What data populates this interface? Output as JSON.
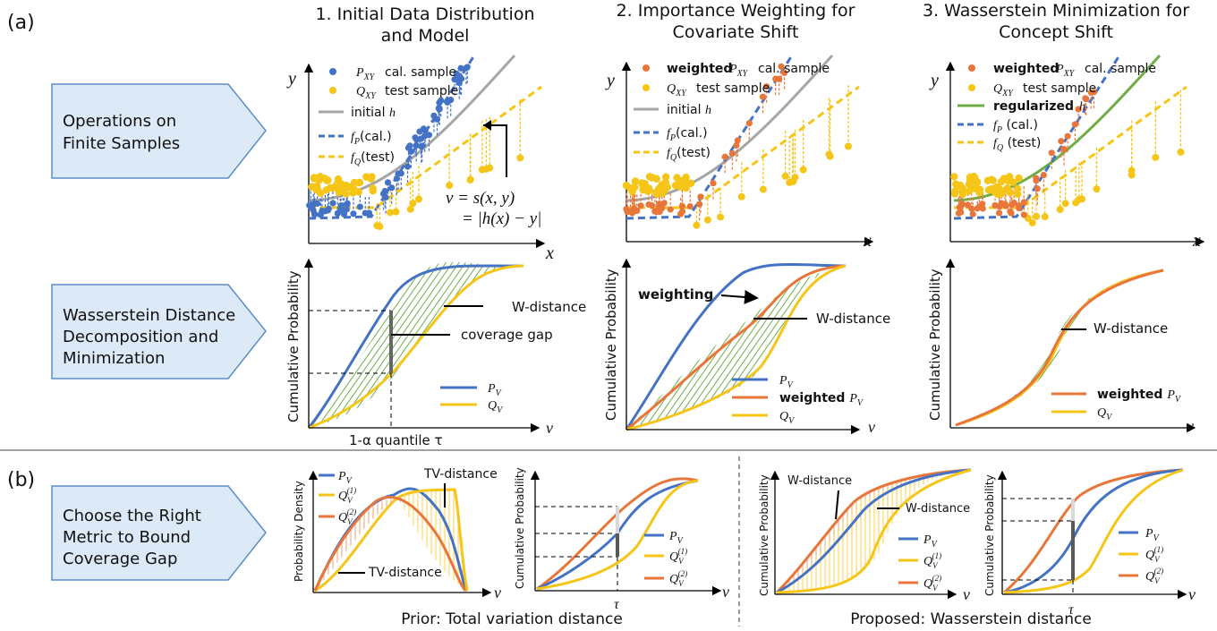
{
  "section_a": {
    "label": "(a)"
  },
  "section_b": {
    "label": "(b)"
  },
  "columns": {
    "c1": {
      "line1": "1.   Initial Data Distribution",
      "line2": "and Model"
    },
    "c2": {
      "line1": "2. Importance Weighting for",
      "line2": "Covariate Shift"
    },
    "c3": {
      "line1": "3. Wasserstein Minimization for",
      "line2": "Concept Shift"
    }
  },
  "row_labels": {
    "r1": [
      "Operations on",
      "Finite Samples"
    ],
    "r2": [
      "Wasserstein Distance",
      "Decomposition and",
      "Minimization"
    ],
    "r3": [
      "Choose the Right",
      "Metric to Bound",
      "Coverage Gap"
    ]
  },
  "scatter1": {
    "legend": [
      "P_XY cal. sample",
      "Q_XY test sample",
      "initial h",
      "f_P(cal.)",
      "f_Q(test)"
    ],
    "score_eq1": "v = s(x, y)",
    "score_eq2": "= |h(x) − y|"
  },
  "scatter2": {
    "legend_bold": "weighted",
    "legend": [
      "P_XY cal. sample",
      "Q_XY test sample",
      "initial h",
      "f_P(cal.)",
      "f_Q(test)"
    ]
  },
  "scatter3": {
    "legend_bold": "weighted",
    "legend_bold2": "regularized",
    "legend": [
      "P_XY cal. sample",
      "Q_XY test sample",
      "h",
      "f_P (cal.)",
      "f_Q (test)"
    ]
  },
  "axes": {
    "x": "x",
    "y": "y",
    "v": "v",
    "tau": "τ",
    "cum_prob": "Cumulative Probability",
    "prob_density": "Probability Density"
  },
  "cdf1": {
    "w_distance": "W-distance",
    "coverage_gap": "coverage gap",
    "quantile": "1-α quantile τ",
    "legend": [
      "P_V",
      "Q_V"
    ]
  },
  "cdf2": {
    "weighting": "weighting",
    "w_distance": "W-distance",
    "legend": [
      "P_V",
      "weighted P_V",
      "Q_V"
    ]
  },
  "cdf3": {
    "w_distance": "W-distance",
    "legend": [
      "weighted P_V",
      "Q_V"
    ]
  },
  "bottom": {
    "tv_distance": "TV-distance",
    "legend": [
      "P_V",
      "Q_V^(1)",
      "Q_V^(2)"
    ],
    "prior_caption": "Prior: Total variation distance",
    "proposed_caption": "Proposed: Wasserstein distance",
    "w_distance": "W-distance"
  },
  "colors": {
    "blue": "#4472c4",
    "yellow": "#f5c518",
    "orange": "#e8763a",
    "gray": "#a6a6a6",
    "green": "#70ad47",
    "arrow_fill": "#dce9f6",
    "arrow_stroke": "#5b8ec7"
  }
}
